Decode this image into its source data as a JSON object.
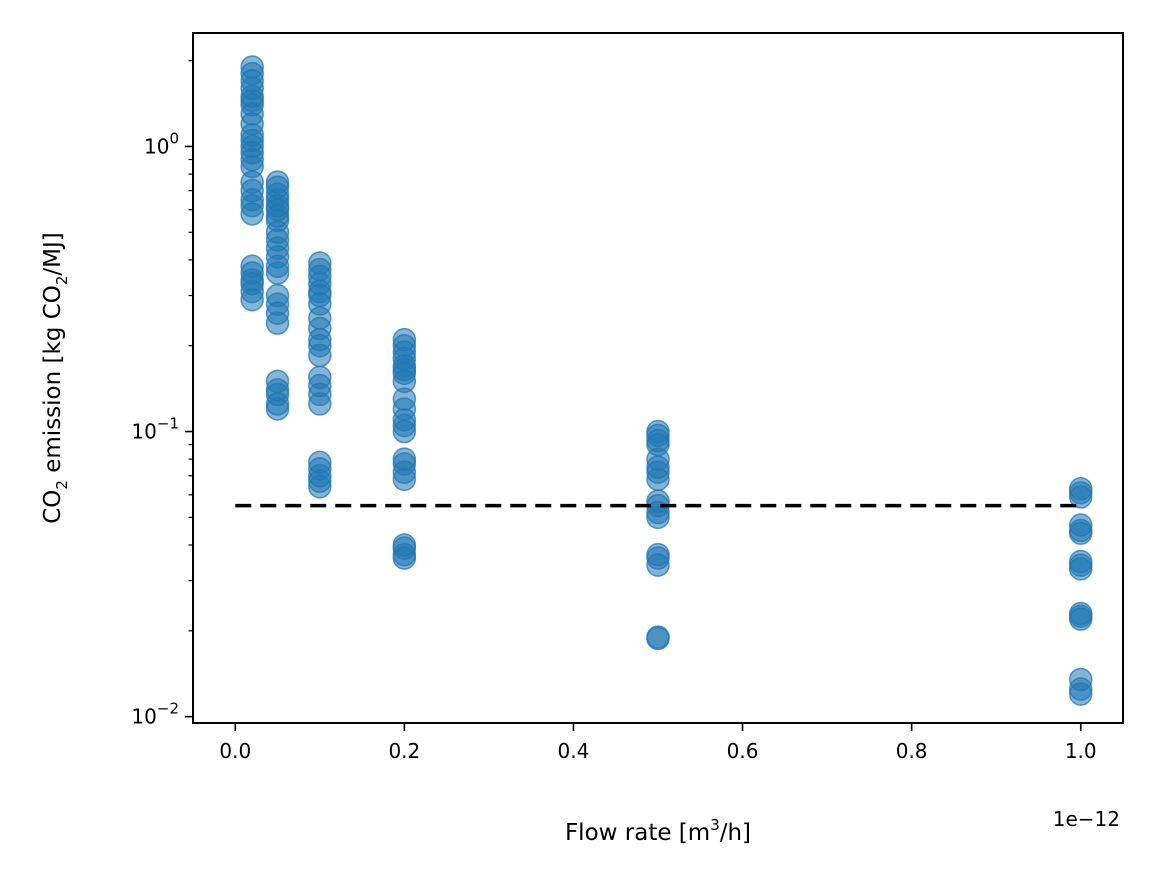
{
  "chart_data": {
    "type": "scatter",
    "xlabel": {
      "main": "Flow rate [m",
      "sup": "3",
      "tail": "/h]"
    },
    "ylabel": {
      "pre": "CO",
      "sub1": "2",
      "mid": " emission [kg CO",
      "sub2": "2",
      "tail": "/MJ]"
    },
    "x_offset_label": "1e−12",
    "xlim": [
      -0.05,
      1.05
    ],
    "ylim": [
      0.0095,
      2.5
    ],
    "yscale": "log",
    "x_ticks": [
      0.0,
      0.2,
      0.4,
      0.6,
      0.8,
      1.0
    ],
    "x_tick_labels": [
      "0.0",
      "0.2",
      "0.4",
      "0.6",
      "0.8",
      "1.0"
    ],
    "y_major_ticks": [
      {
        "value": 0.01,
        "base": "10",
        "exp": "−2"
      },
      {
        "value": 0.1,
        "base": "10",
        "exp": "−1"
      },
      {
        "value": 1,
        "base": "10",
        "exp": "0"
      }
    ],
    "marker_color": "#1f77b4",
    "reference_line": {
      "y": 0.055,
      "x_start": 0.0,
      "x_end": 1.0,
      "style": "dashed",
      "color": "#000000"
    },
    "series": [
      {
        "x": 0.02,
        "y": [
          1.9,
          1.8,
          1.7,
          1.6,
          1.5,
          1.45,
          1.4,
          1.3,
          1.2,
          1.1,
          1.05,
          1.0,
          0.95,
          0.9,
          0.85,
          0.75,
          0.7,
          0.65,
          0.62,
          0.58,
          0.38,
          0.36,
          0.34,
          0.33,
          0.31,
          0.29
        ]
      },
      {
        "x": 0.05,
        "y": [
          0.75,
          0.72,
          0.68,
          0.65,
          0.62,
          0.6,
          0.57,
          0.55,
          0.5,
          0.47,
          0.44,
          0.41,
          0.38,
          0.36,
          0.3,
          0.28,
          0.26,
          0.24,
          0.15,
          0.14,
          0.135,
          0.125,
          0.12
        ]
      },
      {
        "x": 0.1,
        "y": [
          0.39,
          0.37,
          0.35,
          0.33,
          0.31,
          0.3,
          0.28,
          0.25,
          0.23,
          0.21,
          0.2,
          0.185,
          0.155,
          0.145,
          0.135,
          0.125,
          0.078,
          0.074,
          0.07,
          0.067,
          0.064
        ]
      },
      {
        "x": 0.2,
        "y": [
          0.21,
          0.2,
          0.19,
          0.18,
          0.17,
          0.165,
          0.16,
          0.15,
          0.13,
          0.12,
          0.11,
          0.105,
          0.1,
          0.08,
          0.077,
          0.072,
          0.068,
          0.04,
          0.039,
          0.037,
          0.036
        ]
      },
      {
        "x": 0.5,
        "y": [
          0.1,
          0.097,
          0.093,
          0.09,
          0.08,
          0.075,
          0.072,
          0.068,
          0.057,
          0.055,
          0.052,
          0.05,
          0.037,
          0.036,
          0.034,
          0.019,
          0.0188
        ]
      },
      {
        "x": 1.0,
        "y": [
          0.063,
          0.061,
          0.059,
          0.047,
          0.045,
          0.044,
          0.035,
          0.034,
          0.033,
          0.023,
          0.0225,
          0.022,
          0.0135,
          0.0125,
          0.012
        ]
      }
    ]
  }
}
